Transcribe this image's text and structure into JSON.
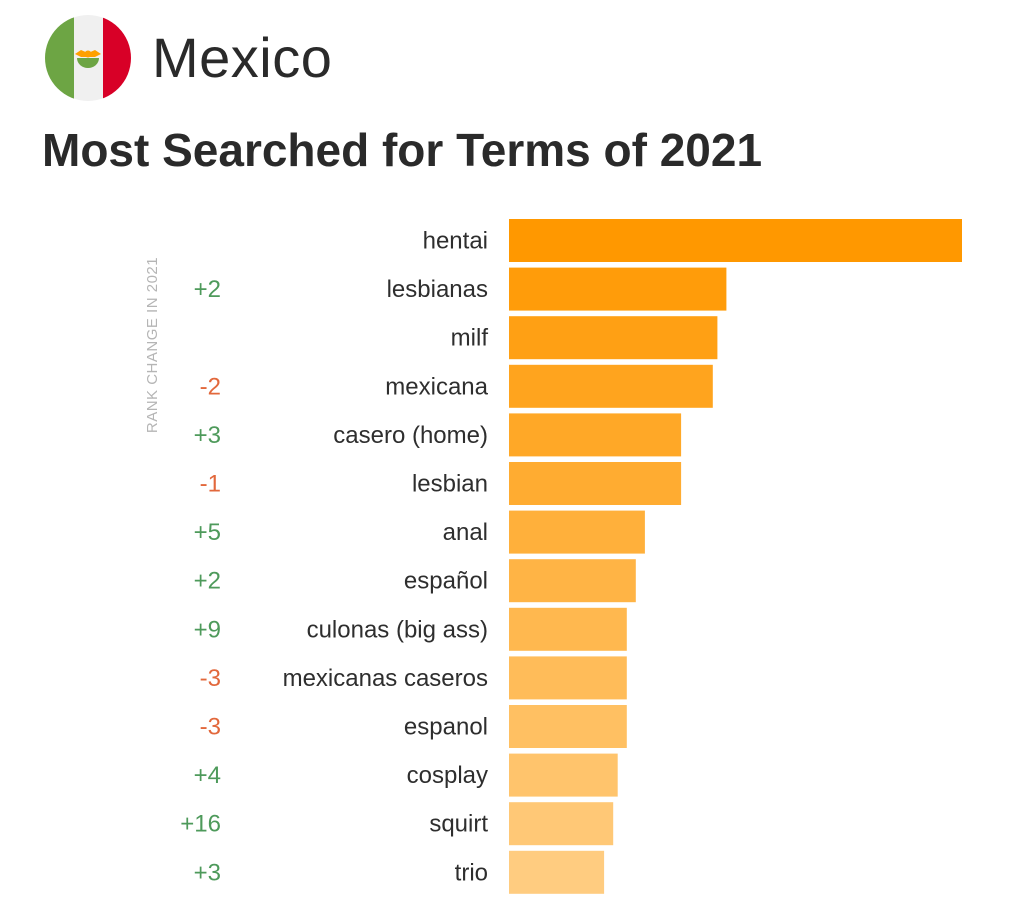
{
  "header": {
    "country": "Mexico",
    "title": "Most Searched for Terms of 2021",
    "flag_icon": "mexico-flag-icon"
  },
  "colors": {
    "bar_top": "#ff9800",
    "bar_bottom": "#ffcc80",
    "positive": "#4e9a5b",
    "negative": "#e2683c",
    "label": "#2e2e2e"
  },
  "chart_data": {
    "type": "bar",
    "orientation": "horizontal",
    "title": "Most Searched for Terms of 2021",
    "rank_change_label": "RANK CHANGE IN 2021",
    "categories": [
      "hentai",
      "lesbianas",
      "milf",
      "mexicana",
      "casero (home)",
      "lesbian",
      "anal",
      "español",
      "culonas (big ass)",
      "mexicanas caseros",
      "espanol",
      "cosplay",
      "squirt",
      "trio"
    ],
    "values": [
      100,
      48,
      46,
      45,
      38,
      38,
      30,
      28,
      26,
      26,
      26,
      24,
      23,
      21
    ],
    "rank_change": [
      "",
      "+2",
      "",
      "-2",
      "+3",
      "-1",
      "+5",
      "+2",
      "+9",
      "-3",
      "-3",
      "+4",
      "+16",
      "+3"
    ],
    "xlim": [
      0,
      100
    ],
    "grid": false,
    "legend": "none"
  }
}
